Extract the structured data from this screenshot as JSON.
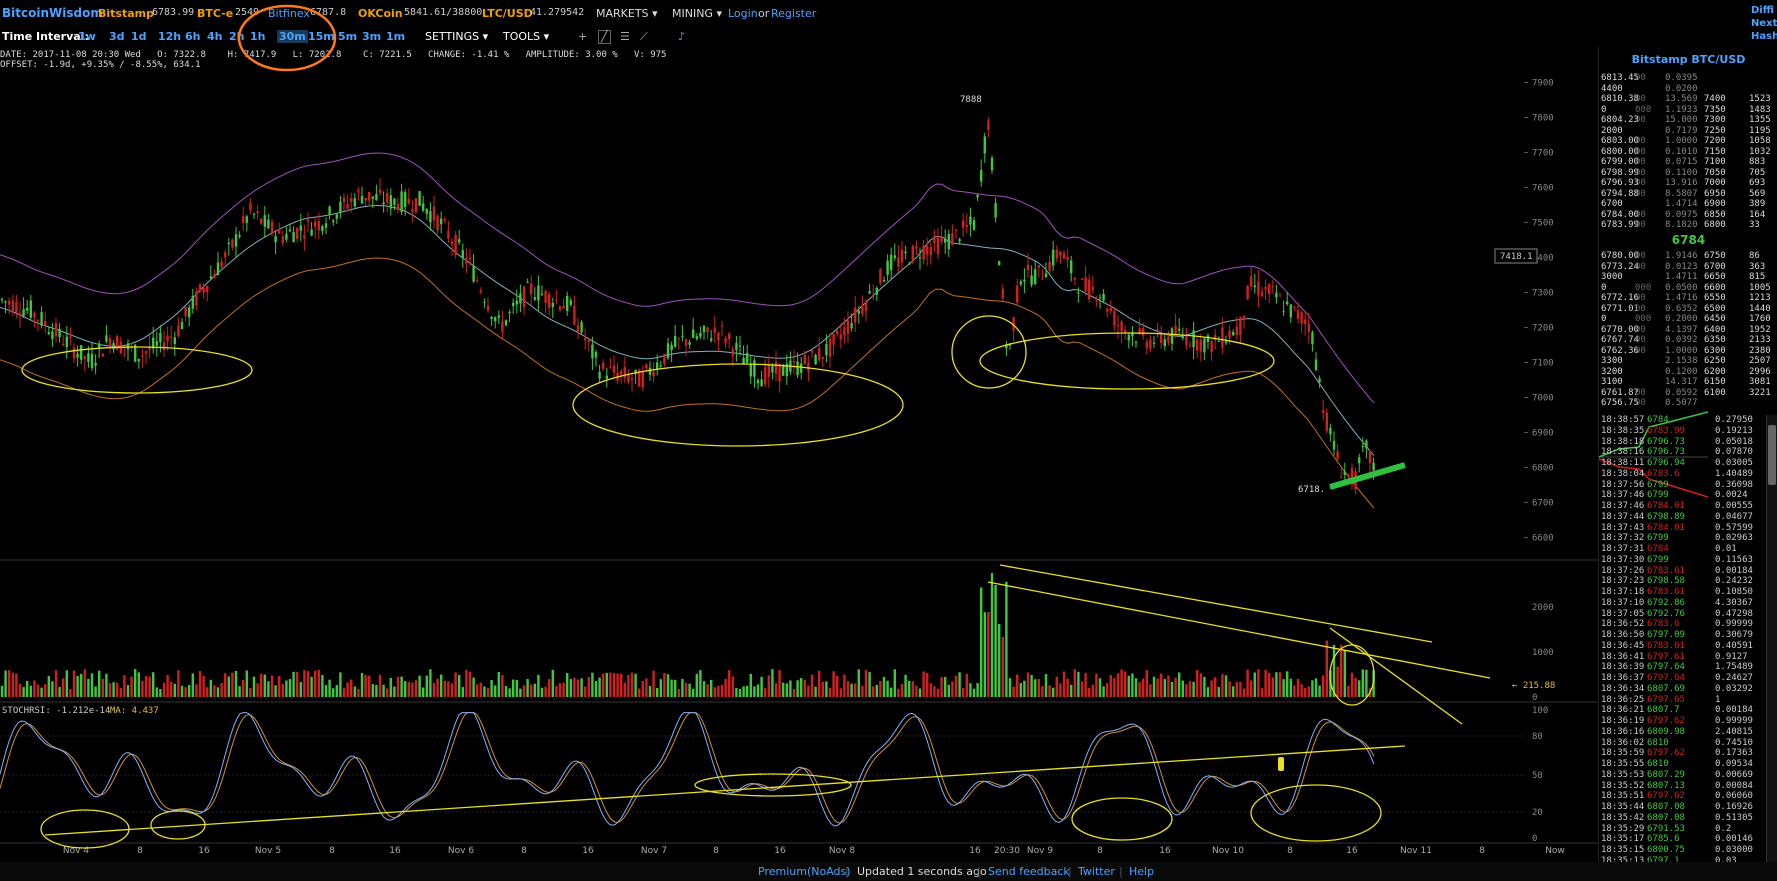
{
  "topbar": {
    "brand": "BitcoinWisdom",
    "exchanges": [
      {
        "name": "Bitstamp",
        "price": "6783.99"
      },
      {
        "name": "BTC-e",
        "price": "2549"
      },
      {
        "name": "Bitfinex",
        "price": "6787.8"
      },
      {
        "name": "OKCoin",
        "price": "5841.61/38800"
      },
      {
        "name": "LTC/USD",
        "price": "41.279542"
      }
    ],
    "markets": "MARKETS ▾",
    "mining": "MINING ▾",
    "login": "Login",
    "or": "or",
    "register": "Register",
    "right_links": [
      "Diffi",
      "Next",
      "Hash"
    ]
  },
  "toolbar": {
    "time_interval_label": "Time Interval:",
    "intervals": [
      "1w",
      "3d",
      "1d",
      "12h",
      "6h",
      "4h",
      "2h",
      "1h",
      "30m",
      "15m",
      "5m",
      "3m",
      "1m"
    ],
    "settings": "SETTINGS ▾",
    "tools": "TOOLS ▾"
  },
  "info": {
    "line1": "DATE: 2017-11-08 20:30 Wed   O: 7322.8    H: 7417.9   L: 7202.8    C: 7221.5   CHANGE: -1.41 %   AMPLITUDE: 3.00 %   V: 975",
    "line2": "OFFSET: -1.9d, +9.35% / -8.55%, 634.1"
  },
  "chart_data": {
    "type": "candlestick",
    "price_axis": [
      "7900",
      "7800",
      "7700",
      "7600",
      "7500",
      "7400",
      "7300",
      "7200",
      "7100",
      "7000",
      "6900",
      "6800",
      "6700",
      "6600"
    ],
    "price_axis_values": [
      7900,
      7800,
      7700,
      7600,
      7500,
      7400,
      7300,
      7200,
      7100,
      7000,
      6900,
      6800,
      6700,
      6600
    ],
    "ylim": [
      6550,
      7950
    ],
    "high_label": "7888",
    "low_label": "6718.",
    "last_price_label": "7418.1",
    "volume_axis": [
      "2000",
      "1000",
      "0"
    ],
    "volume_last_label": "← 215.88",
    "stoch_label": "STOCHRSI: -1.212e-14",
    "stoch_ma_label": "MA: 4.437",
    "stoch_axis": [
      "100",
      "80",
      "50",
      "20",
      "0"
    ],
    "time_labels": [
      "Nov 4",
      "8",
      "16",
      "Nov 5",
      "8",
      "16",
      "Nov 6",
      "8",
      "16",
      "Nov 7",
      "8",
      "16",
      "Nov 8",
      "16",
      "20:30",
      "Nov 9",
      "8",
      "16",
      "Nov 10",
      "8",
      "16",
      "Nov 11",
      "8",
      "Now"
    ]
  },
  "orderbook": {
    "title": "Bitstamp BTC/USD",
    "asks": [
      [
        "6813.45",
        "00",
        "0.0395",
        "",
        ""
      ],
      [
        "4400",
        "",
        "0.0200",
        "",
        ""
      ],
      [
        "6810.38",
        "00",
        "13.569",
        "7400",
        "1523"
      ],
      [
        "0",
        "000",
        "1.1933",
        "7350",
        "1483"
      ],
      [
        "6804.23",
        "00",
        "15.000",
        "7300",
        "1355"
      ],
      [
        "2000",
        "",
        "0.7179",
        "7250",
        "1195"
      ],
      [
        "6803.00",
        "00",
        "1.0000",
        "7200",
        "1058"
      ],
      [
        "6800.00",
        "00",
        "0.1010",
        "7150",
        "1032"
      ],
      [
        "6799.00",
        "00",
        "0.0715",
        "7100",
        "883"
      ],
      [
        "6798.99",
        "00",
        "0.1100",
        "7050",
        "705"
      ],
      [
        "6796.93",
        "00",
        "13.916",
        "7000",
        "693"
      ],
      [
        "6794.88",
        "00",
        "8.5807",
        "6950",
        "569"
      ],
      [
        "6700",
        "",
        "1.4714",
        "6900",
        "389"
      ],
      [
        "6784.00",
        "00",
        "0.0975",
        "6850",
        "164"
      ],
      [
        "6783.99",
        "00",
        "8.1820",
        "6800",
        "33"
      ]
    ],
    "mid": "6784",
    "bids": [
      [
        "6780.00",
        "00",
        "1.9146",
        "6750",
        "86"
      ],
      [
        "6773.24",
        "00",
        "0.0123",
        "6700",
        "363"
      ],
      [
        "3000",
        "",
        "1.4711",
        "6650",
        "815"
      ],
      [
        "0",
        "000",
        "0.0500",
        "6600",
        "1005"
      ],
      [
        "6772.16",
        "00",
        "1.4716",
        "6550",
        "1213"
      ],
      [
        "6771.01",
        "00",
        "0.6352",
        "6500",
        "1440"
      ],
      [
        "0",
        "000",
        "0.2000",
        "6450",
        "1760"
      ],
      [
        "6770.00",
        "00",
        "4.1397",
        "6400",
        "1952"
      ],
      [
        "6767.74",
        "00",
        "0.0392",
        "6350",
        "2133"
      ],
      [
        "6762.36",
        "00",
        "1.0000",
        "6300",
        "2380"
      ],
      [
        "3300",
        "",
        "2.1538",
        "6250",
        "2507"
      ],
      [
        "3200",
        "",
        "0.1200",
        "6200",
        "2996"
      ],
      [
        "3100",
        "",
        "14.317",
        "6150",
        "3081"
      ],
      [
        "6761.87",
        "00",
        "0.0592",
        "6100",
        "3221"
      ],
      [
        "6756.75",
        "00",
        "0.5077",
        "",
        ""
      ]
    ],
    "trades": [
      [
        "18:38:57",
        "6784",
        "0.27950",
        "g"
      ],
      [
        "18:38:35",
        "6783.99",
        "0.19213",
        "r"
      ],
      [
        "18:38:18",
        "6796.73",
        "0.05018",
        "g"
      ],
      [
        "18:38:16",
        "6796.73",
        "0.07870",
        "g"
      ],
      [
        "18:38:11",
        "6796.94",
        "0.03005",
        "g"
      ],
      [
        "18:38:04",
        "6783.6",
        "1.40489",
        "r"
      ],
      [
        "18:37:56",
        "6799",
        "0.36098",
        "g"
      ],
      [
        "18:37:46",
        "6799",
        "0.0024",
        "g"
      ],
      [
        "18:37:46",
        "6784.01",
        "0.00555",
        "r"
      ],
      [
        "18:37:44",
        "6798.89",
        "0.04677",
        "g"
      ],
      [
        "18:37:43",
        "6784.01",
        "0.57599",
        "r"
      ],
      [
        "18:37:32",
        "6799",
        "0.02963",
        "g"
      ],
      [
        "18:37:31",
        "6784",
        "0.01",
        "r"
      ],
      [
        "18:37:30",
        "6799",
        "0.11563",
        "g"
      ],
      [
        "18:37:26",
        "6783.61",
        "0.00184",
        "r"
      ],
      [
        "18:37:23",
        "6798.58",
        "0.24232",
        "g"
      ],
      [
        "18:37:18",
        "6783.61",
        "0.10850",
        "r"
      ],
      [
        "18:37:10",
        "6792.86",
        "4.30367",
        "g"
      ],
      [
        "18:37:05",
        "6792.76",
        "0.47298",
        "g"
      ],
      [
        "18:36:52",
        "6783.6",
        "0.99999",
        "r"
      ],
      [
        "18:36:50",
        "6797.09",
        "0.30679",
        "g"
      ],
      [
        "18:36:45",
        "6783.61",
        "0.40591",
        "r"
      ],
      [
        "18:36:41",
        "6797.61",
        "0.9127",
        "r"
      ],
      [
        "18:36:39",
        "6797.64",
        "1.75489",
        "g"
      ],
      [
        "18:36:37",
        "6797.64",
        "0.24627",
        "r"
      ],
      [
        "18:36:34",
        "6807.69",
        "0.03292",
        "g"
      ],
      [
        "18:36:25",
        "6797.65",
        "1",
        "r"
      ],
      [
        "18:36:21",
        "6807.7",
        "0.00184",
        "g"
      ],
      [
        "18:36:19",
        "6797.62",
        "0.99999",
        "r"
      ],
      [
        "18:36:16",
        "6809.98",
        "2.40815",
        "g"
      ],
      [
        "18:36:02",
        "6810",
        "0.74510",
        "g"
      ],
      [
        "18:35:59",
        "6797.62",
        "0.17363",
        "r"
      ],
      [
        "18:35:55",
        "6810",
        "0.09534",
        "g"
      ],
      [
        "18:35:53",
        "6807.29",
        "0.00669",
        "g"
      ],
      [
        "18:35:52",
        "6807.13",
        "0.00084",
        "g"
      ],
      [
        "18:35:51",
        "6797.62",
        "0.06060",
        "r"
      ],
      [
        "18:35:44",
        "6807.08",
        "0.16926",
        "g"
      ],
      [
        "18:35:42",
        "6807.08",
        "0.51305",
        "g"
      ],
      [
        "18:35:29",
        "6791.53",
        "0.2",
        "g"
      ],
      [
        "18:35:17",
        "6785.6",
        "0.00146",
        "g"
      ],
      [
        "18:35:15",
        "6800.75",
        "0.03000",
        "g"
      ],
      [
        "18:35:13",
        "6797.1",
        "0.03",
        "g"
      ]
    ]
  },
  "footer": {
    "premium": "Premium(NoAds)",
    "updated": "Updated 1 seconds ago",
    "feedback": "Send feedback",
    "twitter": "Twitter",
    "help": "Help"
  },
  "colors": {
    "up": "#3ec83e",
    "down": "#d02020",
    "accent": "#4aa3ff",
    "annotation": "#e8e020",
    "circle": "#ff7a1a"
  }
}
